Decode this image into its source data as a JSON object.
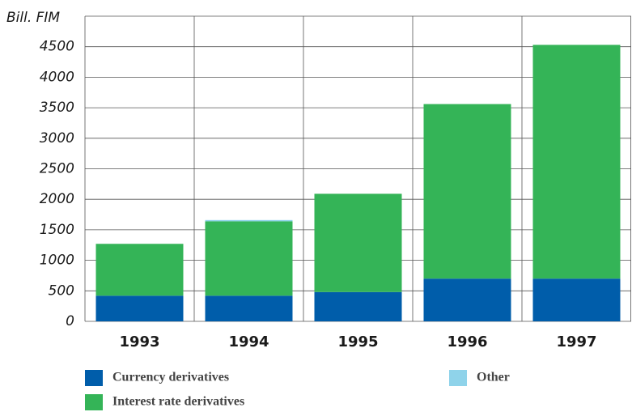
{
  "chart_data": {
    "type": "bar",
    "stacked": true,
    "y_label": "Bill. FIM",
    "categories": [
      "1993",
      "1994",
      "1995",
      "1996",
      "1997"
    ],
    "series": [
      {
        "name": "Currency derivatives",
        "color": "#005daa",
        "values": [
          420,
          420,
          480,
          700,
          700
        ]
      },
      {
        "name": "Interest rate derivatives",
        "color": "#34b457",
        "values": [
          850,
          1220,
          1610,
          2860,
          3830
        ]
      },
      {
        "name": "Other",
        "color": "#8fd3ea",
        "values": [
          0,
          20,
          0,
          0,
          0
        ]
      }
    ],
    "ylim": [
      0,
      5000
    ],
    "yticks": [
      0,
      500,
      1000,
      1500,
      2000,
      2500,
      3000,
      3500,
      4000,
      4500
    ],
    "grid": true
  }
}
